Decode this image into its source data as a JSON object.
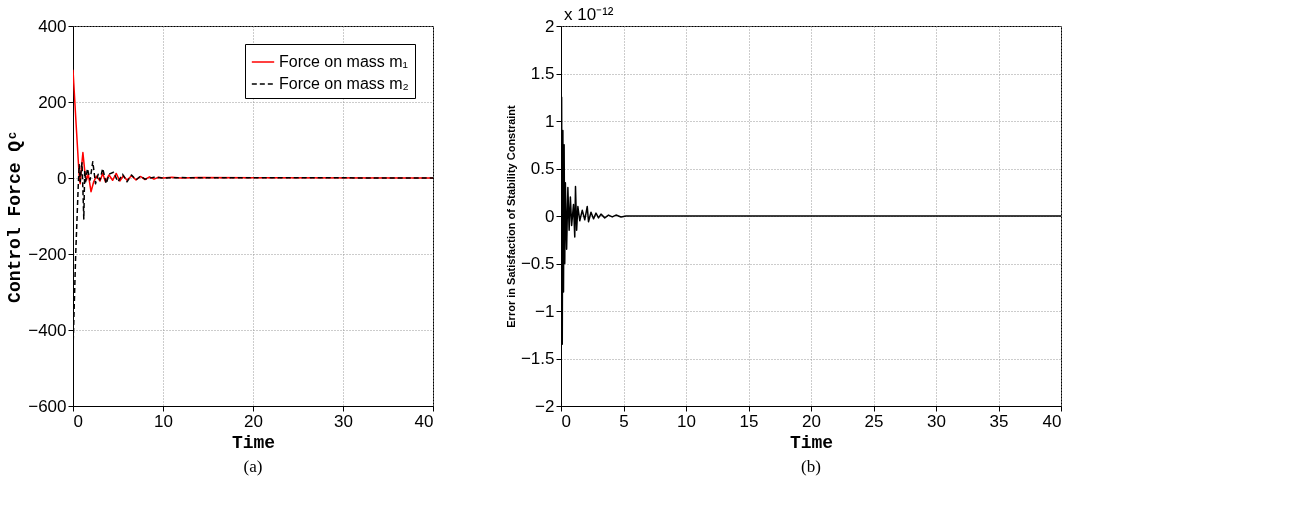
{
  "chart_data": [
    {
      "type": "line",
      "xlabel": "Time",
      "ylabel": "Control Force Qᶜ",
      "annotations": [
        "(a)"
      ],
      "xlim": [
        0,
        40
      ],
      "xticks": [
        0,
        10,
        20,
        30,
        40
      ],
      "ylim": [
        -600,
        400
      ],
      "yticks": [
        -600,
        -400,
        -200,
        0,
        200,
        400
      ],
      "grid": true,
      "legend": "top right",
      "series": [
        {
          "name": "Force on mass m₁",
          "color": "#ff0000",
          "line_style": "solid",
          "x": [
            0,
            0.35,
            0.7,
            0.8,
            0.95,
            1.1,
            1.3,
            1.5,
            1.7,
            2.0,
            2.3,
            2.6,
            3.0,
            3.3,
            3.6,
            4.0,
            4.4,
            4.8,
            5.2,
            5.6,
            6.0,
            6.5,
            7.0,
            7.5,
            8.0,
            8.5,
            9.0,
            9.5,
            10.0,
            11,
            12,
            14,
            40
          ],
          "values": [
            285,
            140,
            0,
            -15,
            30,
            67,
            20,
            -5,
            10,
            -36,
            -10,
            5,
            -8,
            12,
            -10,
            8,
            -6,
            12,
            -8,
            6,
            -6,
            6,
            -5,
            4,
            -4,
            3,
            -3,
            2,
            0,
            2,
            0,
            1,
            0
          ]
        },
        {
          "name": "Force on mass m₂",
          "color": "#000000",
          "line_style": "dashed",
          "x": [
            0,
            0.3,
            0.6,
            0.7,
            0.8,
            0.9,
            1.0,
            1.1,
            1.2,
            1.3,
            1.4,
            1.6,
            1.9,
            2.2,
            2.5,
            2.8,
            3.0,
            3.3,
            3.7,
            4.0,
            4.5,
            5.0,
            5.5,
            6.0,
            6.5,
            7.0,
            7.5,
            8.0,
            9.0,
            10.0,
            12,
            40
          ],
          "values": [
            -450,
            -200,
            -10,
            35,
            -10,
            20,
            40,
            -30,
            -108,
            20,
            -10,
            25,
            -5,
            43,
            -15,
            10,
            -5,
            25,
            -15,
            10,
            15,
            -10,
            10,
            -10,
            8,
            -5,
            5,
            -3,
            2,
            0,
            1,
            0
          ]
        }
      ]
    },
    {
      "type": "line",
      "xlabel": "Time",
      "ylabel": "Error in Satisfaction of Stability Constraint",
      "annotations": [
        "x 10⁻¹²",
        "(b)"
      ],
      "xlim": [
        0,
        40
      ],
      "xticks": [
        0,
        5,
        10,
        15,
        20,
        25,
        30,
        35,
        40
      ],
      "ylim": [
        -2,
        2
      ],
      "yticks": [
        -2,
        -1.5,
        -1,
        -0.5,
        0,
        0.5,
        1,
        1.5,
        2
      ],
      "grid": true,
      "series": [
        {
          "color": "#000000",
          "line_style": "solid",
          "x": [
            0,
            0.05,
            0.1,
            0.15,
            0.2,
            0.25,
            0.3,
            0.35,
            0.45,
            0.55,
            0.65,
            0.75,
            0.85,
            1.0,
            1.1,
            1.16,
            1.25,
            1.35,
            1.5,
            1.7,
            1.9,
            2.1,
            2.2,
            2.4,
            2.6,
            2.8,
            3.0,
            3.2,
            3.5,
            3.8,
            4.1,
            4.4,
            4.8,
            5.2,
            6,
            7,
            40
          ],
          "values": [
            0,
            1.25,
            -1.35,
            0.9,
            -0.8,
            0.75,
            -0.5,
            0.35,
            -0.35,
            0.3,
            -0.15,
            0.2,
            -0.1,
            0.12,
            -0.22,
            0.31,
            -0.15,
            0.1,
            -0.05,
            0.06,
            -0.04,
            0.1,
            -0.06,
            0.04,
            -0.03,
            0.03,
            -0.02,
            0.02,
            -0.02,
            0.01,
            -0.01,
            0.01,
            -0.01,
            0,
            0,
            0,
            0
          ]
        }
      ]
    }
  ]
}
